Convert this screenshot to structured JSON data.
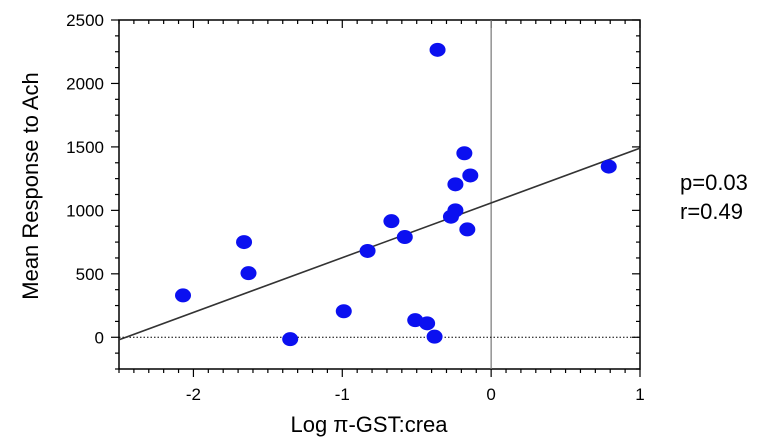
{
  "chart_data": {
    "type": "scatter",
    "xlabel": "Log π-GST:crea",
    "ylabel": "Mean Response to Ach",
    "xlim": [
      -2.5,
      1
    ],
    "ylim": [
      -250,
      2500
    ],
    "x_ticks": [
      -2,
      -1,
      0,
      1
    ],
    "y_ticks": [
      0,
      500,
      1000,
      1500,
      2000,
      2500
    ],
    "x_ticks_labels": [
      "-2",
      "-1",
      "0",
      "1"
    ],
    "y_ticks_labels": [
      "0",
      "500",
      "1000",
      "1500",
      "2000",
      "2500"
    ],
    "points": [
      {
        "x": -2.07,
        "y": 330
      },
      {
        "x": -1.66,
        "y": 750
      },
      {
        "x": -1.63,
        "y": 505
      },
      {
        "x": -1.35,
        "y": -15
      },
      {
        "x": -0.99,
        "y": 205
      },
      {
        "x": -0.83,
        "y": 680
      },
      {
        "x": -0.67,
        "y": 915
      },
      {
        "x": -0.58,
        "y": 790
      },
      {
        "x": -0.51,
        "y": 135
      },
      {
        "x": -0.43,
        "y": 110
      },
      {
        "x": -0.38,
        "y": 5
      },
      {
        "x": -0.36,
        "y": 2265
      },
      {
        "x": -0.27,
        "y": 950
      },
      {
        "x": -0.24,
        "y": 1000
      },
      {
        "x": -0.24,
        "y": 1205
      },
      {
        "x": -0.18,
        "y": 1450
      },
      {
        "x": -0.16,
        "y": 850
      },
      {
        "x": -0.14,
        "y": 1275
      },
      {
        "x": 0.79,
        "y": 1345
      }
    ],
    "regression_line": {
      "x": [
        -2.5,
        1
      ],
      "y": [
        -20,
        1490
      ]
    },
    "reference_lines": {
      "x0_vertical": 0,
      "y0_dotted": 0
    },
    "grid": false,
    "point_color": "#0b10f0",
    "line_color": "#333333",
    "annotations": [
      "p=0.03",
      "r=0.49"
    ]
  }
}
